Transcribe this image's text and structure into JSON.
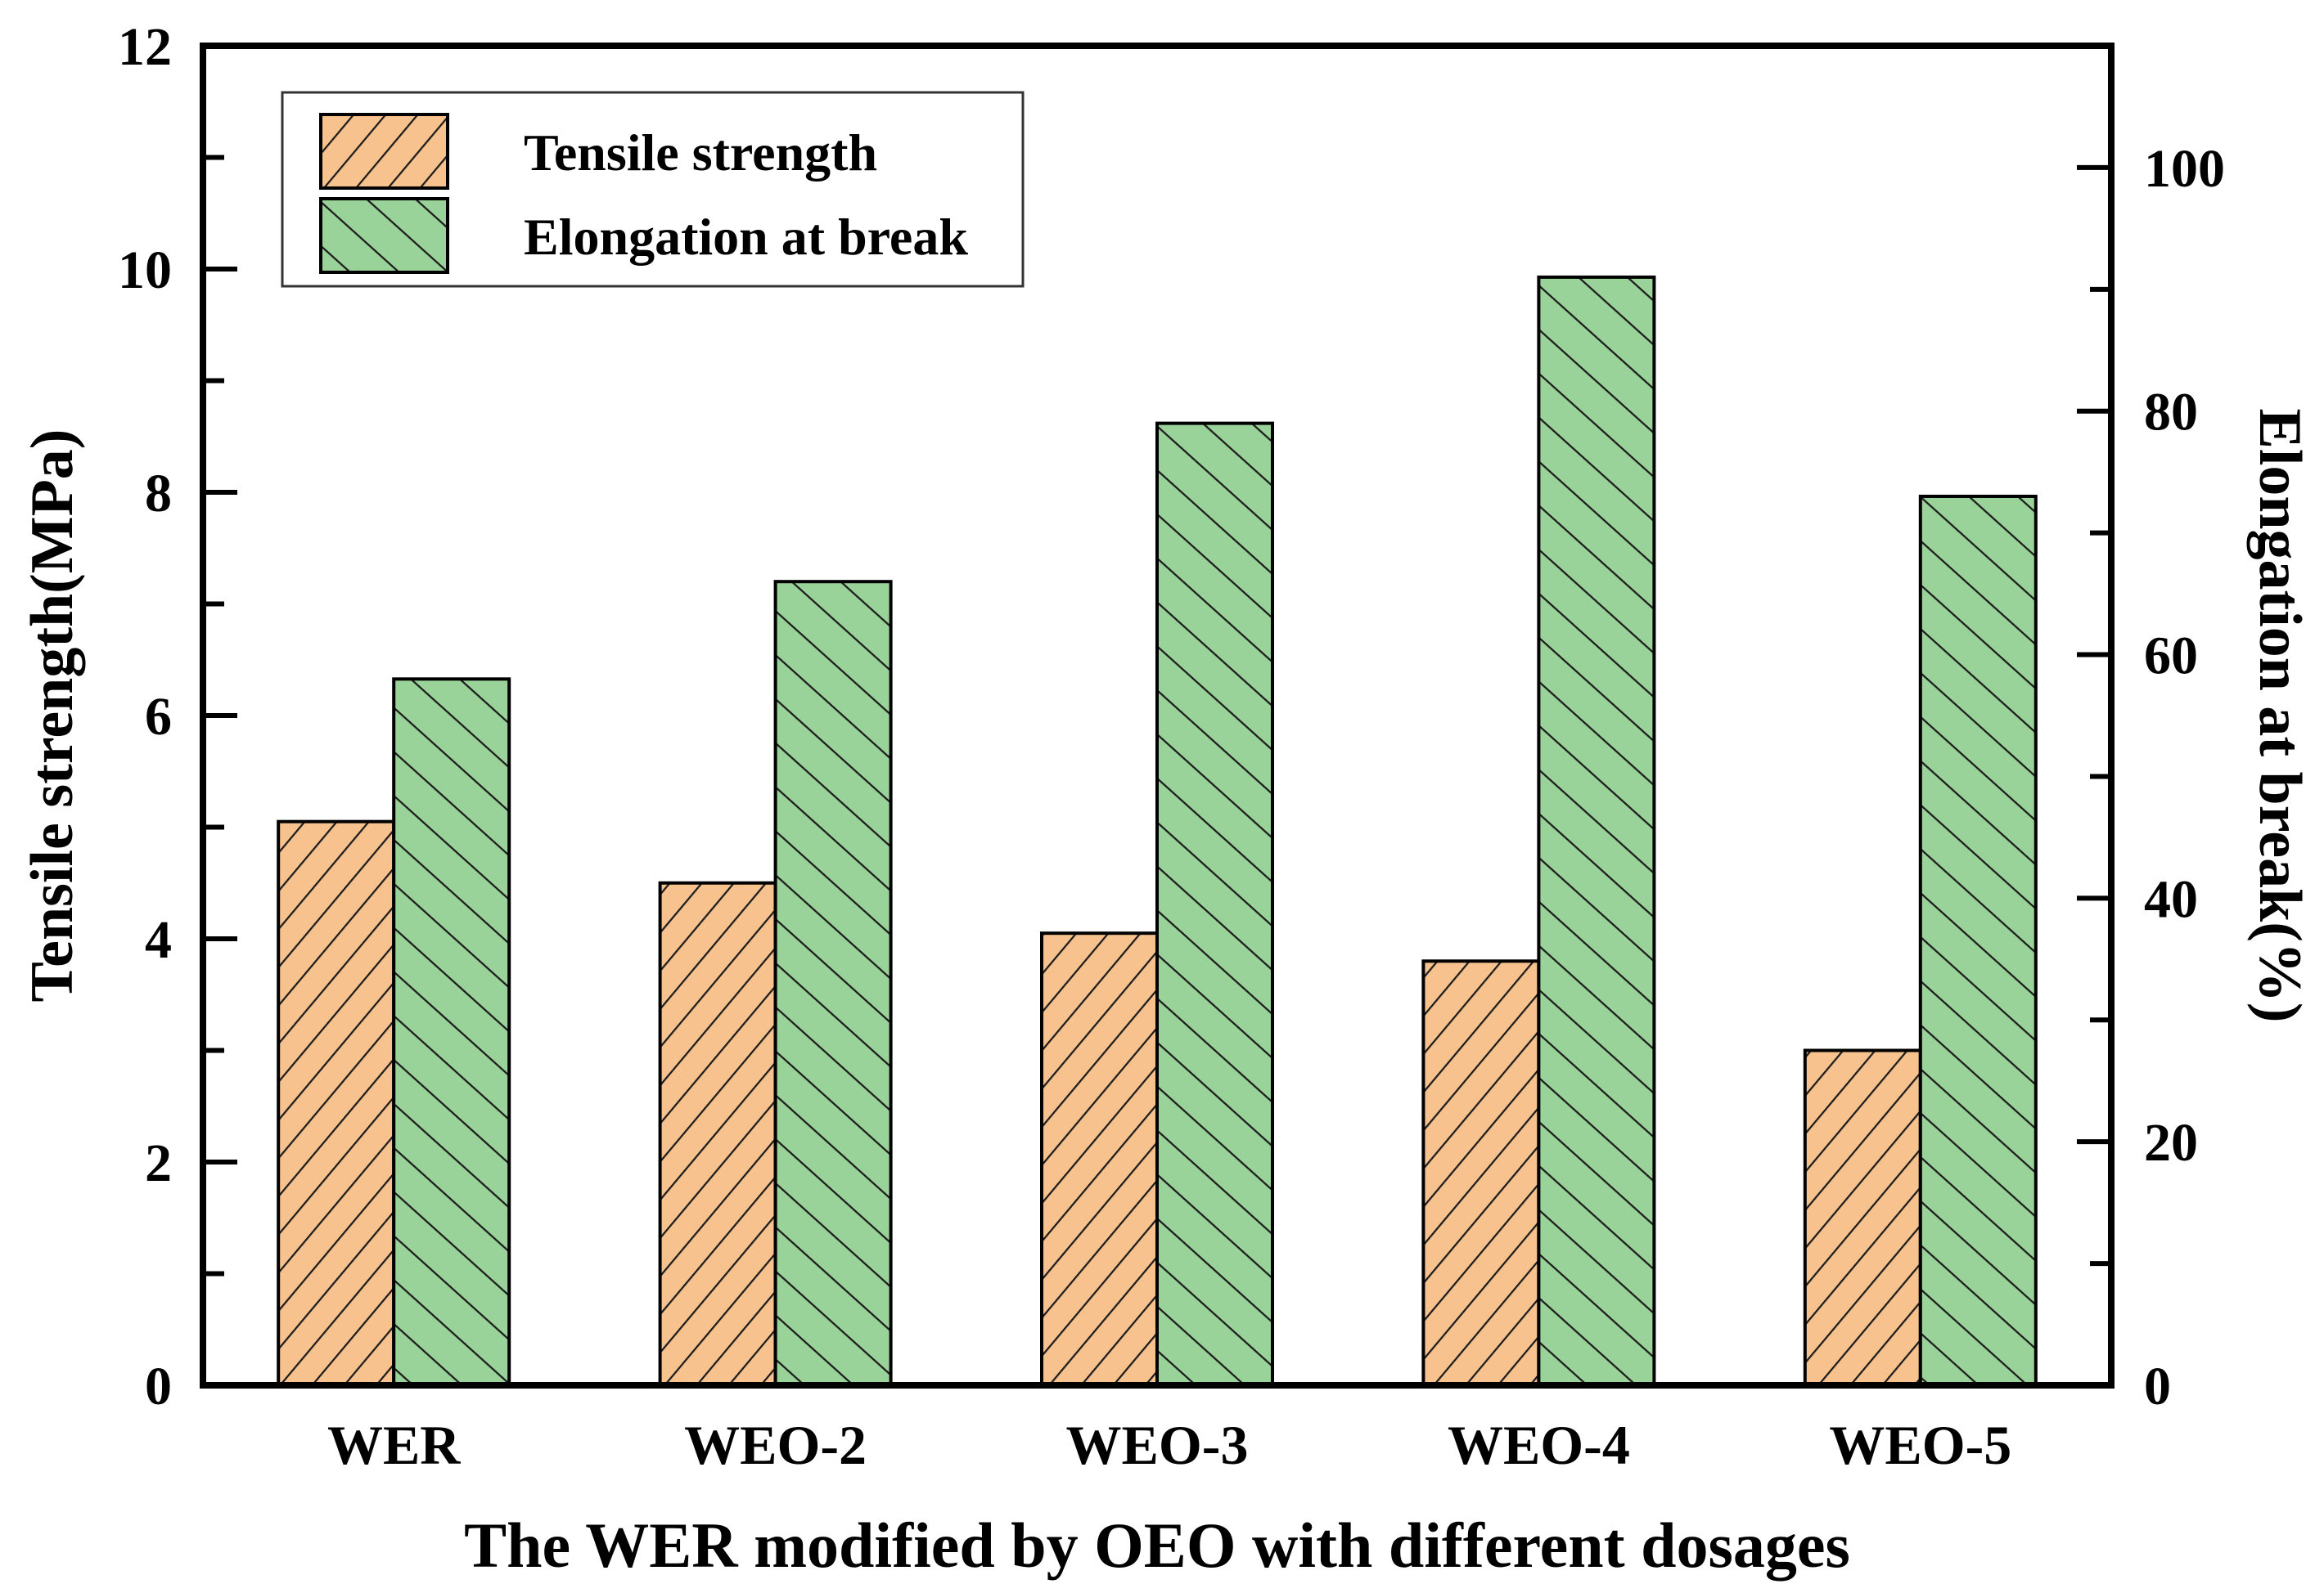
{
  "chart_data": {
    "type": "bar",
    "categories": [
      "WER",
      "WEO-2",
      "WEO-3",
      "WEO-4",
      "WEO-5"
    ],
    "series": [
      {
        "name": "Tensile strength",
        "yaxis": "left",
        "color": "#F8C28E",
        "hatch": "/",
        "values": [
          5.05,
          4.5,
          4.05,
          3.8,
          3.0
        ]
      },
      {
        "name": "Elongation at break",
        "yaxis": "right",
        "color": "#9AD39A",
        "hatch": "\\",
        "values": [
          58,
          66,
          79,
          91,
          73
        ]
      }
    ],
    "xlabel": "The WER modified by OEO with different dosages",
    "left_axis": {
      "label": "Tensile strength(MPa)",
      "min": 0,
      "max": 12,
      "major_ticks": [
        0,
        2,
        4,
        6,
        8,
        10,
        12
      ],
      "minor_ticks": [
        1,
        3,
        5,
        7,
        9,
        11
      ]
    },
    "right_axis": {
      "label": "Elongation at break(%)",
      "min": 0,
      "max": 110,
      "major_ticks": [
        0,
        20,
        40,
        60,
        80,
        100
      ],
      "minor_ticks": [
        10,
        30,
        50,
        70,
        90
      ]
    },
    "legend": {
      "position": "top-left"
    },
    "grid": false,
    "background": "#ffffff",
    "frame_color": "#000000",
    "bar_edge_color": "#000000",
    "hatch_color": "#1c1c1c"
  }
}
